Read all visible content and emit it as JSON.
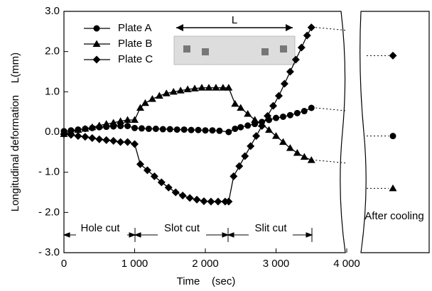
{
  "chart_data": {
    "type": "line",
    "x_label": "Time    (sec)",
    "y_label": "Longitudinal deformation    L(mm)",
    "xlim": [
      0,
      4000
    ],
    "xticks": [
      0,
      {
        "value": 1000,
        "label": "1 000"
      },
      {
        "value": 2000,
        "label": "2 000"
      },
      {
        "value": 3000,
        "label": "3 000"
      },
      {
        "value": 4000,
        "label": "4 000"
      }
    ],
    "ylim": [
      -3,
      3
    ],
    "yticks": [
      {
        "value": 3,
        "label": "3.0"
      },
      {
        "value": 2,
        "label": "2.0"
      },
      {
        "value": 1,
        "label": "1.0"
      },
      {
        "value": 0,
        "label": "0.0"
      },
      {
        "value": -1,
        "label": "- 1.0"
      },
      {
        "value": -2,
        "label": "- 2.0"
      },
      {
        "value": -3,
        "label": "- 3.0"
      }
    ],
    "phases": [
      "Hole cut",
      "Slot cut",
      "Slit cut"
    ],
    "dimension_label": "L",
    "after_label": "After cooling",
    "series": [
      {
        "name": "Plate A",
        "marker": "circle",
        "color": "#000000",
        "x": [
          0,
          100,
          200,
          300,
          400,
          500,
          600,
          700,
          800,
          900,
          1000,
          1100,
          1200,
          1300,
          1400,
          1500,
          1600,
          1700,
          1800,
          1900,
          2000,
          2100,
          2200,
          2330,
          2420,
          2500,
          2600,
          2700,
          2800,
          2900,
          3000,
          3100,
          3200,
          3300,
          3400,
          3500
        ],
        "values": [
          0.02,
          0.04,
          0.06,
          0.08,
          0.1,
          0.12,
          0.13,
          0.14,
          0.15,
          0.15,
          0.1,
          0.09,
          0.08,
          0.08,
          0.07,
          0.07,
          0.06,
          0.06,
          0.05,
          0.05,
          0.04,
          0.04,
          0.03,
          0.0,
          0.08,
          0.12,
          0.16,
          0.2,
          0.25,
          0.3,
          0.35,
          0.38,
          0.42,
          0.47,
          0.52,
          0.6
        ],
        "after": -0.1
      },
      {
        "name": "Plate B",
        "marker": "triangle",
        "color": "#000000",
        "x": [
          0,
          100,
          200,
          300,
          400,
          500,
          600,
          700,
          800,
          900,
          1000,
          1080,
          1150,
          1250,
          1350,
          1450,
          1550,
          1650,
          1750,
          1850,
          1950,
          2050,
          2150,
          2250,
          2330,
          2420,
          2500,
          2600,
          2700,
          2800,
          2900,
          3000,
          3100,
          3200,
          3300,
          3400,
          3500
        ],
        "values": [
          -0.05,
          0.0,
          0.05,
          0.08,
          0.12,
          0.16,
          0.2,
          0.23,
          0.27,
          0.3,
          0.3,
          0.6,
          0.72,
          0.82,
          0.9,
          0.96,
          1.0,
          1.03,
          1.06,
          1.08,
          1.1,
          1.1,
          1.1,
          1.1,
          1.1,
          0.7,
          0.6,
          0.45,
          0.3,
          0.2,
          0.05,
          -0.1,
          -0.25,
          -0.4,
          -0.52,
          -0.62,
          -0.7
        ],
        "after": -1.4
      },
      {
        "name": "Plate C",
        "marker": "diamond",
        "color": "#000000",
        "x": [
          0,
          100,
          200,
          300,
          400,
          500,
          600,
          700,
          800,
          900,
          1000,
          1080,
          1180,
          1280,
          1380,
          1480,
          1580,
          1680,
          1780,
          1880,
          1980,
          2080,
          2180,
          2280,
          2330,
          2400,
          2480,
          2560,
          2640,
          2720,
          2800,
          2880,
          2960,
          3040,
          3120,
          3200,
          3280,
          3360,
          3440,
          3500
        ],
        "values": [
          -0.05,
          -0.07,
          -0.1,
          -0.12,
          -0.15,
          -0.18,
          -0.2,
          -0.22,
          -0.25,
          -0.25,
          -0.3,
          -0.8,
          -0.95,
          -1.1,
          -1.25,
          -1.38,
          -1.5,
          -1.58,
          -1.64,
          -1.68,
          -1.72,
          -1.73,
          -1.73,
          -1.73,
          -1.73,
          -1.1,
          -0.85,
          -0.6,
          -0.35,
          -0.1,
          0.15,
          0.4,
          0.65,
          0.9,
          1.2,
          1.5,
          1.8,
          2.1,
          2.4,
          2.6
        ],
        "after": 1.9
      }
    ]
  }
}
